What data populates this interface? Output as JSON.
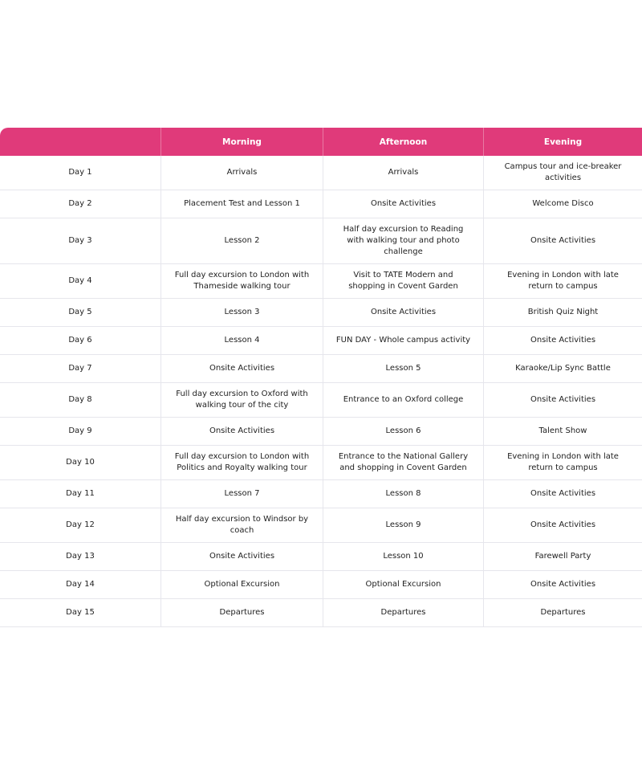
{
  "table": {
    "header_color": "#e03a7a",
    "headers": [
      "",
      "Morning",
      "Afternoon",
      "Evening"
    ],
    "rows": [
      [
        "Day 1",
        "Arrivals",
        "Arrivals",
        "Campus tour and ice-breaker activities"
      ],
      [
        "Day 2",
        "Placement Test and Lesson 1",
        "Onsite Activities",
        "Welcome Disco"
      ],
      [
        "Day 3",
        "Lesson 2",
        "Half day excursion to Reading with walking tour and photo challenge",
        "Onsite Activities"
      ],
      [
        "Day 4",
        "Full day excursion to London with Thameside walking tour",
        "Visit to TATE Modern and shopping in Covent Garden",
        "Evening in London with late return to campus"
      ],
      [
        "Day 5",
        "Lesson 3",
        "Onsite Activities",
        "British Quiz Night"
      ],
      [
        "Day 6",
        "Lesson 4",
        "FUN DAY - Whole campus activity",
        "Onsite Activities"
      ],
      [
        "Day 7",
        "Onsite Activities",
        "Lesson 5",
        "Karaoke/Lip Sync Battle"
      ],
      [
        "Day 8",
        "Full day excursion to Oxford with walking tour of the city",
        "Entrance to an Oxford college",
        "Onsite Activities"
      ],
      [
        "Day 9",
        "Onsite Activities",
        "Lesson 6",
        "Talent Show"
      ],
      [
        "Day 10",
        "Full day excursion to London with Politics and Royalty walking tour",
        "Entrance to the National Gallery and shopping in Covent Garden",
        "Evening in London with late return to campus"
      ],
      [
        "Day 11",
        "Lesson 7",
        "Lesson 8",
        "Onsite Activities"
      ],
      [
        "Day 12",
        "Half day excursion to Windsor by coach",
        "Lesson 9",
        "Onsite Activities"
      ],
      [
        "Day 13",
        "Onsite Activities",
        "Lesson 10",
        "Farewell Party"
      ],
      [
        "Day 14",
        "Optional Excursion",
        "Optional Excursion",
        "Onsite Activities"
      ],
      [
        "Day 15",
        "Departures",
        "Departures",
        "Departures"
      ]
    ]
  }
}
